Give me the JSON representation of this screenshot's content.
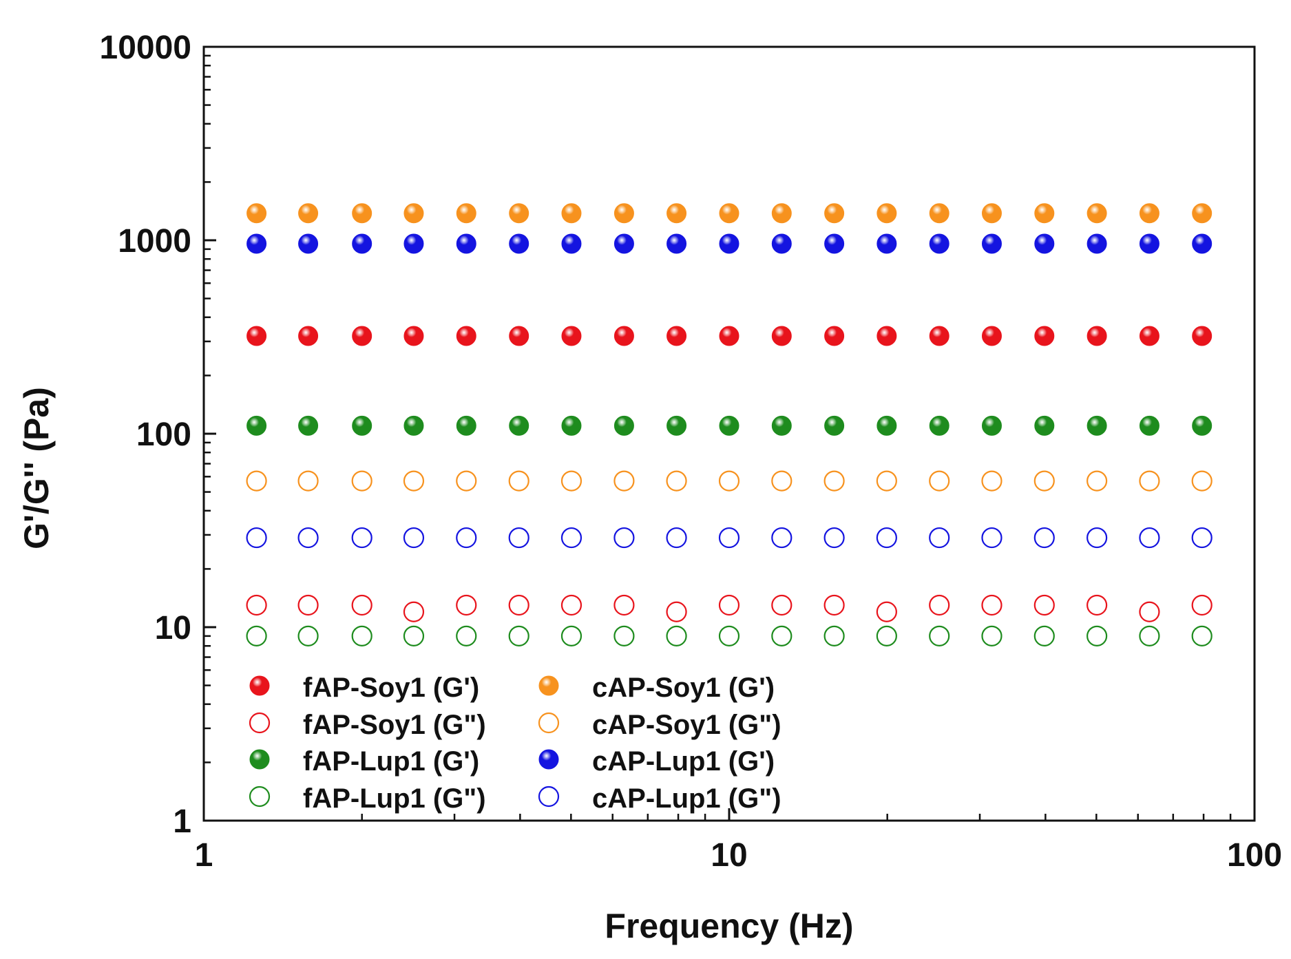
{
  "chart_data": {
    "type": "scatter",
    "title": "",
    "xlabel": "Frequency (Hz)",
    "ylabel": "G'/G'' (Pa)",
    "xscale": "log",
    "yscale": "log",
    "xlim": [
      1,
      100
    ],
    "ylim": [
      1,
      10000
    ],
    "x_ticks": [
      "1",
      "10",
      "100"
    ],
    "y_ticks": [
      "1",
      "10",
      "100",
      "1000",
      "10000"
    ],
    "grid": false,
    "legend_position": "lower-left",
    "x": [
      1.26,
      1.58,
      2.0,
      2.51,
      3.16,
      3.98,
      5.01,
      6.31,
      7.94,
      10.0,
      12.59,
      15.85,
      19.95,
      25.12,
      31.62,
      39.81,
      50.12,
      63.1,
      79.43
    ],
    "series": [
      {
        "name": "fAP-Soy1 (G')",
        "color": "#e8141c",
        "filled": true,
        "values": [
          320,
          320,
          320,
          320,
          320,
          320,
          320,
          320,
          320,
          320,
          320,
          320,
          320,
          320,
          320,
          320,
          320,
          320,
          320
        ]
      },
      {
        "name": "fAP-Soy1 (G\")",
        "color": "#e8141c",
        "filled": false,
        "values": [
          13,
          13,
          13,
          12,
          13,
          13,
          13,
          13,
          12,
          13,
          13,
          13,
          12,
          13,
          13,
          13,
          13,
          12,
          13
        ]
      },
      {
        "name": "fAP-Lup1 (G')",
        "color": "#1e8c1e",
        "filled": true,
        "values": [
          110,
          110,
          110,
          110,
          110,
          110,
          110,
          110,
          110,
          110,
          110,
          110,
          110,
          110,
          110,
          110,
          110,
          110,
          110
        ]
      },
      {
        "name": "fAP-Lup1 (G\")",
        "color": "#1e8c1e",
        "filled": false,
        "values": [
          9,
          9,
          9,
          9,
          9,
          9,
          9,
          9,
          9,
          9,
          9,
          9,
          9,
          9,
          9,
          9,
          9,
          9,
          9
        ]
      },
      {
        "name": "cAP-Soy1 (G')",
        "color": "#f7921e",
        "filled": true,
        "values": [
          1380,
          1380,
          1380,
          1380,
          1380,
          1380,
          1380,
          1380,
          1380,
          1380,
          1380,
          1380,
          1380,
          1380,
          1380,
          1380,
          1380,
          1380,
          1380
        ]
      },
      {
        "name": "cAP-Soy1 (G\")",
        "color": "#f7921e",
        "filled": false,
        "values": [
          57,
          57,
          57,
          57,
          57,
          57,
          57,
          57,
          57,
          57,
          57,
          57,
          57,
          57,
          57,
          57,
          57,
          57,
          57
        ]
      },
      {
        "name": "cAP-Lup1 (G')",
        "color": "#1414e0",
        "filled": true,
        "values": [
          960,
          960,
          960,
          960,
          960,
          960,
          960,
          960,
          960,
          960,
          960,
          960,
          960,
          960,
          960,
          960,
          960,
          960,
          960
        ]
      },
      {
        "name": "cAP-Lup1 (G\")",
        "color": "#1414e0",
        "filled": false,
        "values": [
          29,
          29,
          29,
          29,
          29,
          29,
          29,
          29,
          29,
          29,
          29,
          29,
          29,
          29,
          29,
          29,
          29,
          29,
          29
        ]
      }
    ]
  }
}
